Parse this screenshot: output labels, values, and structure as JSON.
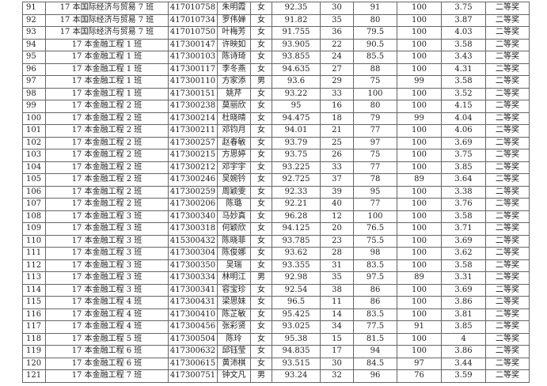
{
  "rows": [
    [
      "91",
      "17 本国际经济与贸易 7 班",
      "417010758",
      "朱明霞",
      "女",
      "92.35",
      "30",
      "91",
      "100",
      "3.75",
      "二等奖"
    ],
    [
      "92",
      "17 本国际经济与贸易 7 班",
      "417010734",
      "罗伟婵",
      "女",
      "91.82",
      "35",
      "80",
      "100",
      "3.87",
      "二等奖"
    ],
    [
      "93",
      "17 本国际经济与贸易 7 班",
      "417010750",
      "叶梅芳",
      "女",
      "91.755",
      "36",
      "79.5",
      "100",
      "4.03",
      "二等奖"
    ],
    [
      "94",
      "17 本金融工程 1 班",
      "417300147",
      "许映如",
      "女",
      "93.905",
      "22",
      "90.5",
      "100",
      "3.58",
      "二等奖"
    ],
    [
      "95",
      "17 本金融工程 1 班",
      "417300103",
      "陈诗琦",
      "女",
      "93.855",
      "24",
      "85.5",
      "100",
      "3.43",
      "二等奖"
    ],
    [
      "96",
      "17 本金融工程 1 班",
      "417300117",
      "李冬燕",
      "女",
      "94.635",
      "27",
      "88",
      "100",
      "4.31",
      "二等奖"
    ],
    [
      "97",
      "17 本金融工程 1 班",
      "417300110",
      "方家添",
      "男",
      "93.6",
      "29",
      "75",
      "99",
      "3.58",
      "二等奖"
    ],
    [
      "98",
      "17 本金融工程 1 班",
      "417300151",
      "姚芹",
      "女",
      "93.22",
      "33",
      "100",
      "100",
      "3.52",
      "二等奖"
    ],
    [
      "99",
      "17 本金融工程 2 班",
      "417300238",
      "莫丽欣",
      "女",
      "95",
      "16",
      "80",
      "100",
      "4.15",
      "二等奖"
    ],
    [
      "100",
      "17 本金融工程 2 班",
      "417300214",
      "杜晓晴",
      "女",
      "94.475",
      "18",
      "79",
      "99",
      "4.04",
      "二等奖"
    ],
    [
      "101",
      "17 本金融工程 2 班",
      "417300211",
      "邓钧月",
      "女",
      "94.01",
      "21",
      "77",
      "100",
      "4.06",
      "二等奖"
    ],
    [
      "102",
      "17 本金融工程 2 班",
      "417300257",
      "赵春敏",
      "女",
      "93.79",
      "25",
      "97",
      "100",
      "3.69",
      "二等奖"
    ],
    [
      "103",
      "17 本金融工程 2 班",
      "417300215",
      "方思婷",
      "女",
      "93.75",
      "26",
      "75",
      "100",
      "3.75",
      "二等奖"
    ],
    [
      "104",
      "17 本金融工程 2 班",
      "417300212",
      "邓宇宇",
      "女",
      "93.225",
      "33",
      "77",
      "100",
      "3.85",
      "二等奖"
    ],
    [
      "105",
      "17 本金融工程 2 班",
      "417300246",
      "吴婉钤",
      "女",
      "92.725",
      "37",
      "78",
      "89",
      "3.64",
      "二等奖"
    ],
    [
      "106",
      "17 本金融工程 2 班",
      "417300259",
      "周颖雯",
      "女",
      "92.33",
      "39",
      "95",
      "100",
      "3.38",
      "二等奖"
    ],
    [
      "107",
      "17 本金融工程 2 班",
      "417300206",
      "陈璐",
      "女",
      "92.21",
      "40",
      "77",
      "100",
      "3.76",
      "二等奖"
    ],
    [
      "108",
      "17 本金融工程 3 班",
      "417300340",
      "马妙真",
      "女",
      "96.28",
      "12",
      "100",
      "100",
      "3.58",
      "二等奖"
    ],
    [
      "109",
      "17 本金融工程 3 班",
      "417300318",
      "何颖欣",
      "女",
      "94.125",
      "20",
      "76.5",
      "100",
      "3.71",
      "二等奖"
    ],
    [
      "110",
      "17 本金融工程 3 班",
      "415300432",
      "陈晓菲",
      "女",
      "93.785",
      "23",
      "75.5",
      "100",
      "3.69",
      "二等奖"
    ],
    [
      "111",
      "17 本金融工程 3 班",
      "417300304",
      "陈俊娜",
      "女",
      "93.62",
      "28",
      "98",
      "100",
      "3.62",
      "二等奖"
    ],
    [
      "112",
      "17 本金融工程 3 班",
      "417300350",
      "吴瑞",
      "女",
      "93.355",
      "31",
      "83.5",
      "100",
      "3.58",
      "二等奖"
    ],
    [
      "113",
      "17 本金融工程 3 班",
      "417300334",
      "林明江",
      "男",
      "92.98",
      "35",
      "97.5",
      "89",
      "3.31",
      "二等奖"
    ],
    [
      "114",
      "17 本金融工程 3 班",
      "417300341",
      "容宝珍",
      "女",
      "92.54",
      "38",
      "86",
      "100",
      "3.69",
      "二等奖"
    ],
    [
      "115",
      "17 本金融工程 4 班",
      "417300431",
      "梁思妹",
      "女",
      "96.5",
      "11",
      "86",
      "100",
      "3.86",
      "二等奖"
    ],
    [
      "116",
      "17 本金融工程 4 班",
      "417300410",
      "陈芷敏",
      "女",
      "95.425",
      "14",
      "83.5",
      "100",
      "3.81",
      "二等奖"
    ],
    [
      "117",
      "17 本金融工程 4 班",
      "417300456",
      "张彩贤",
      "女",
      "93.025",
      "34",
      "77.5",
      "91",
      "3.85",
      "二等奖"
    ],
    [
      "118",
      "17 本金融工程 5 班",
      "417300504",
      "陈玲",
      "女",
      "95.38",
      "15",
      "81.5",
      "100",
      "4",
      "二等奖"
    ],
    [
      "119",
      "17 本金融工程 6 班",
      "417300632",
      "邱钰莹",
      "女",
      "94.835",
      "17",
      "94",
      "100",
      "3.86",
      "二等奖"
    ],
    [
      "120",
      "17 本金融工程 6 班",
      "417300615",
      "黄沛棋",
      "女",
      "93.515",
      "30",
      "84.5",
      "97",
      "3.44",
      "二等奖"
    ],
    [
      "121",
      "17 本金融工程 7 班",
      "417300751",
      "钟文凡",
      "男",
      "93.24",
      "32",
      "96",
      "76",
      "3.59",
      "二等奖"
    ]
  ]
}
